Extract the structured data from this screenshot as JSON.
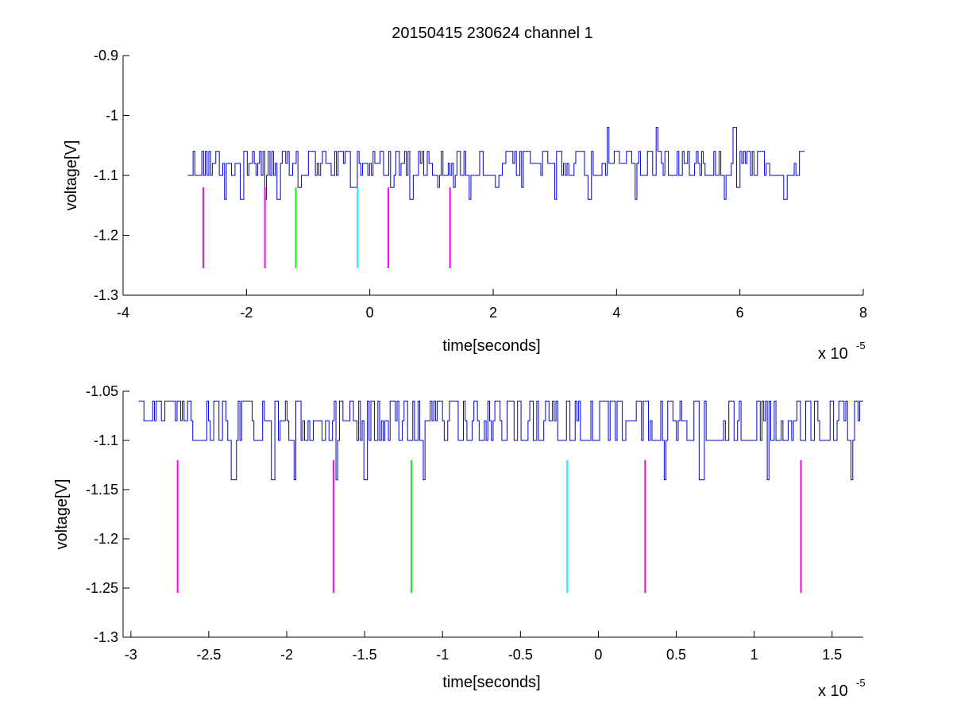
{
  "chart_data": [
    {
      "type": "line",
      "title": "20150415 230624 channel 1",
      "xlabel": "time[seconds]",
      "ylabel": "voltage[V]",
      "x_exponent_label": "x 10",
      "x_exponent": "-5",
      "xlim": [
        -4,
        8
      ],
      "ylim": [
        -1.3,
        -0.9
      ],
      "x_ticks": [
        -4,
        -2,
        0,
        2,
        4,
        6,
        8
      ],
      "x_tick_labels": [
        "-4",
        "-2",
        "0",
        "2",
        "4",
        "6",
        "8"
      ],
      "y_ticks": [
        -1.3,
        -1.2,
        -1.1,
        -1.0,
        -0.9
      ],
      "y_tick_labels": [
        "-1.3",
        "-1.2",
        "-1.1",
        "-1",
        "-0.9"
      ],
      "grid": false,
      "series": [
        {
          "color": "#0000cc",
          "x_range": [
            -2.95,
            7.05
          ],
          "levels": [
            -1.06,
            -1.08,
            -1.1
          ],
          "dips": [
            [
              -2.35,
              -1.14
            ],
            [
              -2.1,
              -1.14
            ],
            [
              -1.7,
              -1.14
            ],
            [
              -1.5,
              -1.14
            ],
            [
              -1.15,
              -1.12
            ],
            [
              -0.3,
              -1.12
            ],
            [
              0.35,
              -1.12
            ],
            [
              0.65,
              -1.14
            ],
            [
              1.1,
              -1.12
            ],
            [
              1.35,
              -1.12
            ],
            [
              1.6,
              -1.14
            ],
            [
              2.05,
              -1.12
            ],
            [
              2.45,
              -1.12
            ],
            [
              3.0,
              -1.14
            ],
            [
              3.55,
              -1.14
            ],
            [
              4.3,
              -1.14
            ],
            [
              5.75,
              -1.14
            ],
            [
              5.95,
              -1.12
            ],
            [
              6.7,
              -1.14
            ]
          ],
          "spikes": [
            [
              3.85,
              -1.02
            ],
            [
              4.65,
              -1.02
            ],
            [
              5.9,
              -1.02
            ]
          ]
        }
      ],
      "markers": [
        {
          "x": -2.7,
          "y_range": [
            -1.255,
            -1.12
          ],
          "color": "#ff00ff"
        },
        {
          "x": -1.7,
          "y_range": [
            -1.255,
            -1.12
          ],
          "color": "#ff00ff"
        },
        {
          "x": -1.2,
          "y_range": [
            -1.255,
            -1.12
          ],
          "color": "#00ff00"
        },
        {
          "x": -0.2,
          "y_range": [
            -1.255,
            -1.12
          ],
          "color": "#00ffff"
        },
        {
          "x": 0.3,
          "y_range": [
            -1.255,
            -1.12
          ],
          "color": "#ff00ff"
        },
        {
          "x": 1.3,
          "y_range": [
            -1.255,
            -1.12
          ],
          "color": "#ff00ff"
        }
      ]
    },
    {
      "type": "line",
      "title": "",
      "xlabel": "time[seconds]",
      "ylabel": "voltage[V]",
      "x_exponent_label": "x 10",
      "x_exponent": "-5",
      "xlim": [
        -3.05,
        1.7
      ],
      "ylim": [
        -1.3,
        -1.05
      ],
      "x_ticks": [
        -3,
        -2.5,
        -2,
        -1.5,
        -1,
        -0.5,
        0,
        0.5,
        1,
        1.5
      ],
      "x_tick_labels": [
        "-3",
        "-2.5",
        "-2",
        "-1.5",
        "-1",
        "-0.5",
        "0",
        "0.5",
        "1",
        "1.5"
      ],
      "y_ticks": [
        -1.3,
        -1.25,
        -1.2,
        -1.15,
        -1.1,
        -1.05
      ],
      "y_tick_labels": [
        "-1.3",
        "-1.25",
        "-1.2",
        "-1.15",
        "-1.1",
        "-1.05"
      ],
      "grid": false,
      "series": [
        {
          "color": "#0000cc",
          "x_range": [
            -2.95,
            1.7
          ],
          "levels": [
            -1.06,
            -1.08,
            -1.1
          ],
          "dips": [
            [
              -2.35,
              -1.14
            ],
            [
              -2.1,
              -1.14
            ],
            [
              -1.95,
              -1.14
            ],
            [
              -1.68,
              -1.14
            ],
            [
              -1.5,
              -1.14
            ],
            [
              -1.12,
              -1.14
            ],
            [
              0.42,
              -1.14
            ],
            [
              0.65,
              -1.14
            ],
            [
              1.08,
              -1.14
            ],
            [
              1.62,
              -1.14
            ]
          ],
          "spikes": []
        }
      ],
      "markers": [
        {
          "x": -2.7,
          "y_range": [
            -1.255,
            -1.12
          ],
          "color": "#ff00ff"
        },
        {
          "x": -1.7,
          "y_range": [
            -1.255,
            -1.12
          ],
          "color": "#ff00ff"
        },
        {
          "x": -1.2,
          "y_range": [
            -1.255,
            -1.12
          ],
          "color": "#00ff00"
        },
        {
          "x": -0.2,
          "y_range": [
            -1.255,
            -1.12
          ],
          "color": "#00ffff"
        },
        {
          "x": 0.3,
          "y_range": [
            -1.255,
            -1.12
          ],
          "color": "#ff00ff"
        },
        {
          "x": 1.3,
          "y_range": [
            -1.255,
            -1.12
          ],
          "color": "#ff00ff"
        }
      ]
    }
  ]
}
